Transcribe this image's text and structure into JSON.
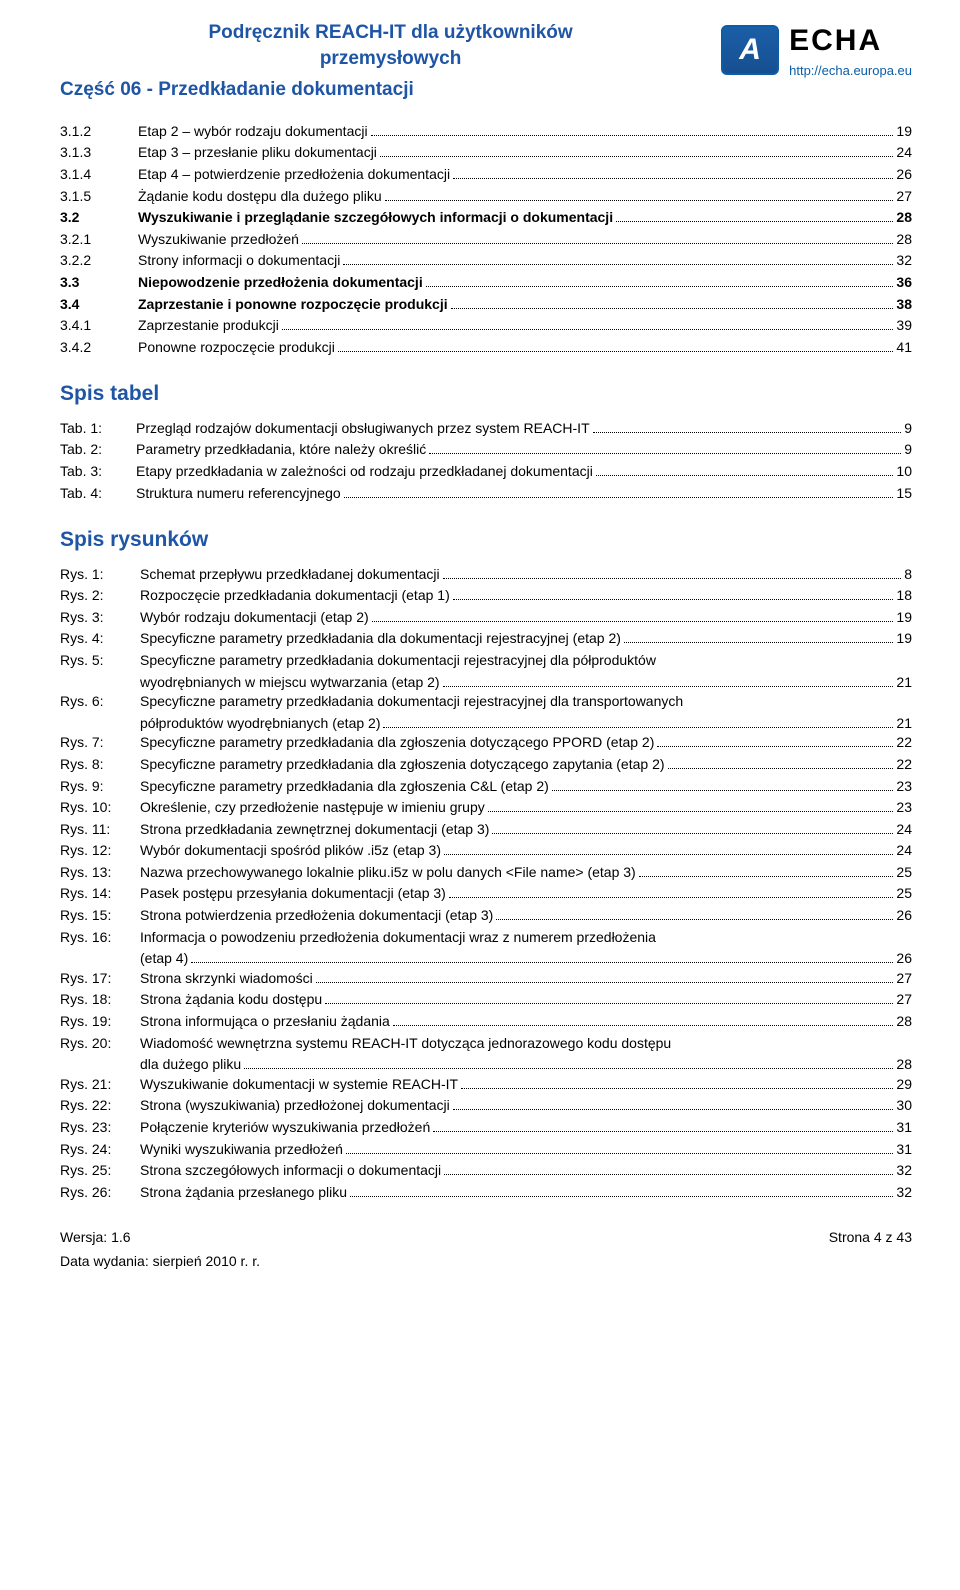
{
  "header": {
    "title_line1": "Podręcznik REACH-IT dla użytkowników",
    "title_line2": "przemysłowych",
    "subtitle": "Część 06 - Przedkładanie dokumentacji",
    "logo_letter": "A",
    "logo_text": "ECHA",
    "logo_url": "http://echa.europa.eu"
  },
  "colors": {
    "heading_blue": "#1f55a5",
    "link_blue": "#0a5ea8"
  },
  "toc": [
    {
      "num": "3.1.2",
      "label": "Etap 2 – wybór rodzaju dokumentacji",
      "page": "19",
      "bold": false,
      "indent": 0
    },
    {
      "num": "3.1.3",
      "label": "Etap 3 – przesłanie pliku dokumentacji",
      "page": "24",
      "bold": false,
      "indent": 0
    },
    {
      "num": "3.1.4",
      "label": "Etap 4 – potwierdzenie przedłożenia dokumentacji",
      "page": "26",
      "bold": false,
      "indent": 0
    },
    {
      "num": "3.1.5",
      "label": "Żądanie kodu dostępu dla dużego pliku",
      "page": "27",
      "bold": false,
      "indent": 0
    },
    {
      "num": "3.2",
      "label": "Wyszukiwanie i przeglądanie szczegółowych informacji o dokumentacji",
      "page": "28",
      "bold": true,
      "indent": 0
    },
    {
      "num": "3.2.1",
      "label": "Wyszukiwanie przedłożeń",
      "page": "28",
      "bold": false,
      "indent": 0
    },
    {
      "num": "3.2.2",
      "label": "Strony informacji o dokumentacji",
      "page": "32",
      "bold": false,
      "indent": 0
    },
    {
      "num": "3.3",
      "label": "Niepowodzenie przedłożenia dokumentacji",
      "page": "36",
      "bold": true,
      "indent": 0
    },
    {
      "num": "3.4",
      "label": "Zaprzestanie i ponowne rozpoczęcie produkcji",
      "page": "38",
      "bold": true,
      "indent": 0
    },
    {
      "num": "3.4.1",
      "label": "Zaprzestanie produkcji",
      "page": "39",
      "bold": false,
      "indent": 0
    },
    {
      "num": "3.4.2",
      "label": "Ponowne rozpoczęcie produkcji",
      "page": "41",
      "bold": false,
      "indent": 0
    }
  ],
  "spis_tabel_heading": "Spis tabel",
  "spis_tabel": [
    {
      "key": "Tab. 1:",
      "label": "Przegląd rodzajów dokumentacji obsługiwanych przez system REACH-IT",
      "page": "9"
    },
    {
      "key": "Tab. 2:",
      "label": "Parametry przedkładania, które należy określić",
      "page": "9"
    },
    {
      "key": "Tab. 3:",
      "label": "Etapy przedkładania w zależności od rodzaju przedkładanej dokumentacji",
      "page": "10"
    },
    {
      "key": "Tab. 4:",
      "label": "Struktura numeru referencyjnego",
      "page": "15"
    }
  ],
  "spis_rysunkow_heading": "Spis rysunków",
  "spis_rysunkow": [
    {
      "key": "Rys. 1:",
      "label": "Schemat przepływu przedkładanej dokumentacji",
      "page": "8"
    },
    {
      "key": "Rys. 2:",
      "label": "Rozpoczęcie przedkładania dokumentacji (etap 1)",
      "page": "18"
    },
    {
      "key": "Rys. 3:",
      "label": "Wybór rodzaju dokumentacji (etap 2)",
      "page": "19"
    },
    {
      "key": "Rys. 4:",
      "label": "Specyficzne parametry przedkładania dla dokumentacji rejestracyjnej (etap 2)",
      "page": "19"
    },
    {
      "key": "Rys. 5:",
      "label": "Specyficzne parametry przedkładania dokumentacji rejestracyjnej dla półproduktów",
      "cont": "wyodrębnianych w miejscu wytwarzania (etap 2)",
      "page": "21"
    },
    {
      "key": "Rys. 6:",
      "label": "Specyficzne parametry przedkładania dokumentacji rejestracyjnej dla transportowanych",
      "cont": "półproduktów wyodrębnianych (etap 2)",
      "page": "21"
    },
    {
      "key": "Rys. 7:",
      "label": "Specyficzne parametry przedkładania dla zgłoszenia dotyczącego PPORD (etap 2)",
      "page": "22"
    },
    {
      "key": "Rys. 8:",
      "label": "Specyficzne parametry przedkładania dla zgłoszenia dotyczącego zapytania (etap 2)",
      "page": "22"
    },
    {
      "key": "Rys. 9:",
      "label": "Specyficzne parametry przedkładania dla zgłoszenia C&L (etap 2)",
      "page": "23"
    },
    {
      "key": "Rys. 10:",
      "label": "Określenie, czy przedłożenie następuje w imieniu grupy",
      "page": "23"
    },
    {
      "key": "Rys. 11:",
      "label": "Strona przedkładania zewnętrznej dokumentacji (etap 3)",
      "page": "24"
    },
    {
      "key": "Rys. 12:",
      "label": "Wybór dokumentacji spośród plików .i5z (etap 3)",
      "page": "24"
    },
    {
      "key": "Rys. 13:",
      "label": "Nazwa przechowywanego lokalnie pliku.i5z w polu danych <File name> (etap 3)",
      "page": "25"
    },
    {
      "key": "Rys. 14:",
      "label": "Pasek postępu przesyłania dokumentacji (etap 3)",
      "page": "25"
    },
    {
      "key": "Rys. 15:",
      "label": "Strona potwierdzenia przedłożenia dokumentacji (etap 3)",
      "page": "26"
    },
    {
      "key": "Rys. 16:",
      "label": "Informacja o powodzeniu przedłożenia dokumentacji wraz z numerem przedłożenia",
      "cont": "(etap 4)",
      "page": "26"
    },
    {
      "key": "Rys. 17:",
      "label": "Strona skrzynki wiadomości",
      "page": "27"
    },
    {
      "key": "Rys. 18:",
      "label": "Strona żądania kodu dostępu",
      "page": "27"
    },
    {
      "key": "Rys. 19:",
      "label": "Strona informująca o przesłaniu żądania",
      "page": "28"
    },
    {
      "key": "Rys. 20:",
      "label": "Wiadomość wewnętrzna systemu REACH-IT dotycząca jednorazowego kodu dostępu",
      "cont": "dla dużego pliku",
      "page": "28"
    },
    {
      "key": "Rys. 21:",
      "label": "Wyszukiwanie dokumentacji w systemie REACH-IT",
      "page": "29"
    },
    {
      "key": "Rys. 22:",
      "label": "Strona (wyszukiwania) przedłożonej dokumentacji",
      "page": "30"
    },
    {
      "key": "Rys. 23:",
      "label": "Połączenie kryteriów wyszukiwania przedłożeń",
      "page": "31"
    },
    {
      "key": "Rys. 24:",
      "label": "Wyniki wyszukiwania przedłożeń",
      "page": "31"
    },
    {
      "key": "Rys. 25:",
      "label": "Strona szczegółowych informacji o dokumentacji",
      "page": "32"
    },
    {
      "key": "Rys. 26:",
      "label": "Strona żądania przesłanego pliku",
      "page": "32"
    }
  ],
  "footer": {
    "left_line1": "Wersja: 1.6",
    "right": "Strona 4 z 43",
    "left_line2": "Data wydania: sierpień 2010 r. r."
  }
}
